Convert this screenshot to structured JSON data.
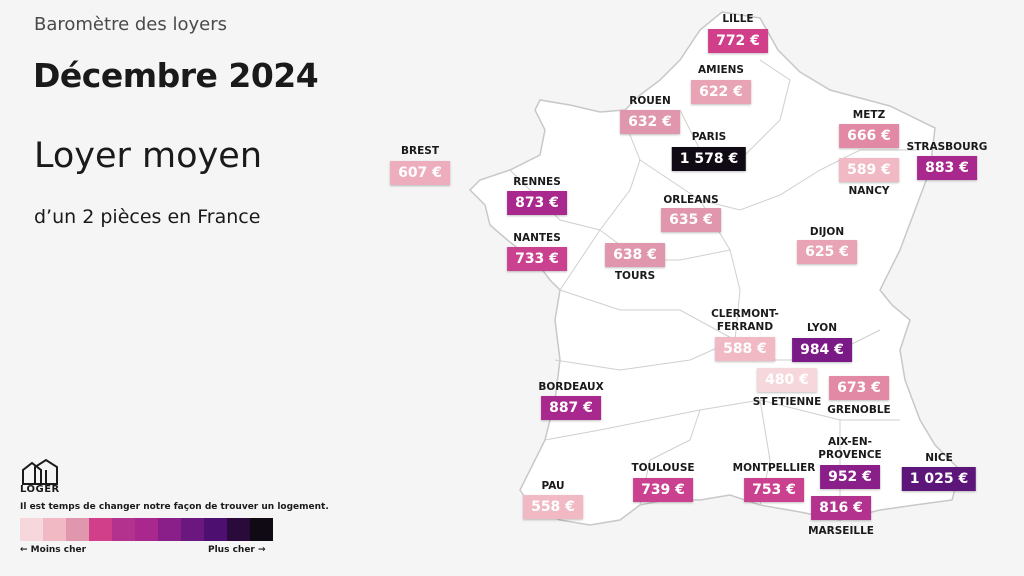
{
  "header": {
    "eyebrow": "Baromètre des loyers",
    "title": "Décembre 2024",
    "subtitle": "Loyer moyen",
    "description": "d’un 2 pièces en France"
  },
  "cities": [
    {
      "name": "LILLE",
      "price": "772 €",
      "color": "#d13f8a"
    },
    {
      "name": "AMIENS",
      "price": "622 €",
      "color": "#e8a3b4"
    },
    {
      "name": "ROUEN",
      "price": "632 €",
      "color": "#e096ad"
    },
    {
      "name": "PARIS",
      "price": "1 578 €",
      "color": "#0f0a14"
    },
    {
      "name": "METZ",
      "price": "666 €",
      "color": "#e28aa5"
    },
    {
      "name": "NANCY",
      "price": "589 €",
      "color": "#f0b9c4"
    },
    {
      "name": "STRASBOURG",
      "price": "883 €",
      "color": "#a8288e"
    },
    {
      "name": "BREST",
      "price": "607 €",
      "color": "#eeadbc"
    },
    {
      "name": "RENNES",
      "price": "873 €",
      "color": "#a8288e"
    },
    {
      "name": "ORLEANS",
      "price": "635 €",
      "color": "#e096ad"
    },
    {
      "name": "NANTES",
      "price": "733 €",
      "color": "#c9418f"
    },
    {
      "name": "TOURS",
      "price": "638 €",
      "color": "#e096ad"
    },
    {
      "name": "DIJON",
      "price": "625 €",
      "color": "#e8a3b4"
    },
    {
      "name": "CLERMONT-FERRAND",
      "price": "588 €",
      "color": "#f0b9c4"
    },
    {
      "name": "LYON",
      "price": "984 €",
      "color": "#7a1a86"
    },
    {
      "name": "ST ETIENNE",
      "price": "480 €",
      "color": "#f6d7dc"
    },
    {
      "name": "GRENOBLE",
      "price": "673 €",
      "color": "#e28aa5"
    },
    {
      "name": "BORDEAUX",
      "price": "887 €",
      "color": "#a8288e"
    },
    {
      "name": "AIX-EN-PROVENCE",
      "price": "952 €",
      "color": "#8a1f8a"
    },
    {
      "name": "NICE",
      "price": "1 025 €",
      "color": "#5c1578"
    },
    {
      "name": "TOULOUSE",
      "price": "739 €",
      "color": "#c9418f"
    },
    {
      "name": "MONTPELLIER",
      "price": "753 €",
      "color": "#c9418f"
    },
    {
      "name": "MARSEILLE",
      "price": "816 €",
      "color": "#b3328e"
    },
    {
      "name": "PAU",
      "price": "558 €",
      "color": "#f0b9c4"
    }
  ],
  "brand": {
    "logo_text": "LOGER",
    "tagline": "Il est temps de changer notre façon de trouver un logement."
  },
  "legend": {
    "low_label": "← Moins cher",
    "high_label": "Plus cher →",
    "colors": [
      "#f6d7dc",
      "#f0b9c4",
      "#e096ad",
      "#d13f8a",
      "#b3328e",
      "#a8288e",
      "#8a1f8a",
      "#6a1780",
      "#4d1070",
      "#2a0a3a",
      "#0f0a14"
    ]
  }
}
